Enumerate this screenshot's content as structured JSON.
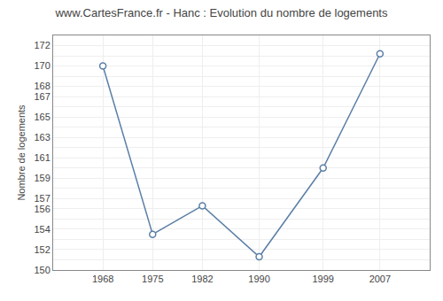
{
  "chart_data": {
    "type": "line",
    "title": "www.CartesFrance.fr - Hanc : Evolution du nombre de logements",
    "ylabel": "Nombre de logements",
    "x": [
      1968,
      1975,
      1982,
      1990,
      1999,
      2007
    ],
    "values": [
      170,
      153.5,
      156.3,
      151.3,
      160.0,
      171.2
    ],
    "color": "#5b7fa6",
    "marker": "circle",
    "xlim": [
      1961,
      2014
    ],
    "xticks": [
      1968,
      1975,
      1982,
      1990,
      1999,
      2007
    ],
    "ylim": [
      150,
      173
    ],
    "yticks": [
      150,
      {
        "value": 151,
        "label": null
      },
      152,
      {
        "value": 153,
        "label": null
      },
      154,
      {
        "value": 155,
        "label": null
      },
      156,
      157,
      {
        "value": 158,
        "label": null
      },
      159,
      {
        "value": 160,
        "label": null
      },
      161,
      {
        "value": 162,
        "label": null
      },
      163,
      {
        "value": 164,
        "label": null
      },
      165,
      {
        "value": 166,
        "label": null
      },
      167,
      168,
      {
        "value": 169,
        "label": null
      },
      170,
      {
        "value": 171,
        "label": null
      },
      172
    ],
    "grid": true
  }
}
